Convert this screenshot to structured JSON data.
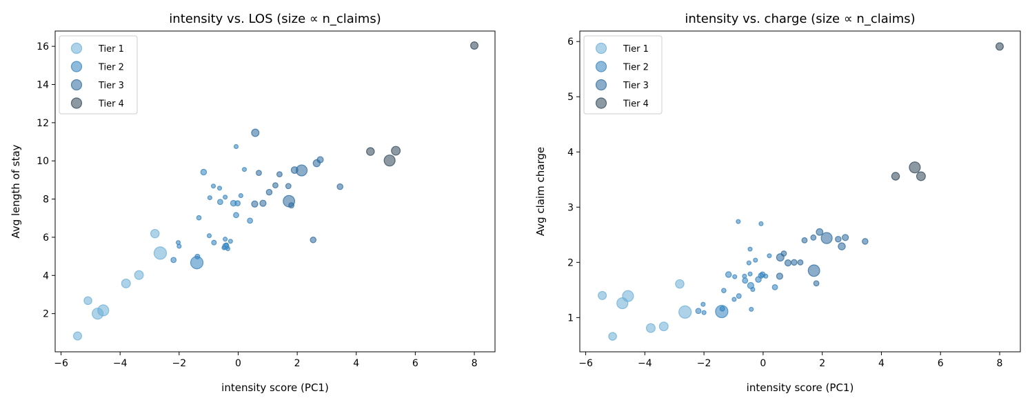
{
  "colors": {
    "Tier 1": "#6baed6",
    "Tier 2": "#3182bd",
    "Tier 3": "#2b6a9c",
    "Tier 4": "#2f4656"
  },
  "chart_data": [
    {
      "type": "scatter",
      "title": "intensity vs. LOS (size ∝ n_claims)",
      "xlabel": "intensity score (PC1)",
      "ylabel": "Avg length of stay",
      "xlim": [
        -6.2,
        8.7
      ],
      "ylim": [
        0.0,
        16.8
      ],
      "xticks": [
        -6,
        -4,
        -2,
        0,
        2,
        4,
        6,
        8
      ],
      "yticks": [
        2,
        4,
        6,
        8,
        10,
        12,
        14,
        16
      ],
      "grid": false,
      "legend": "top-left",
      "legend_entries": [
        "Tier 1",
        "Tier 2",
        "Tier 3",
        "Tier 4"
      ],
      "y_field": "los"
    },
    {
      "type": "scatter",
      "title": "intensity vs. charge (size ∝ n_claims)",
      "xlabel": "intensity score (PC1)",
      "ylabel": "Avg claim charge",
      "xlim": [
        -6.2,
        8.7
      ],
      "ylim": [
        0.38,
        6.19
      ],
      "xticks": [
        -6,
        -4,
        -2,
        0,
        2,
        4,
        6,
        8
      ],
      "yticks": [
        1,
        2,
        3,
        4,
        5,
        6
      ],
      "grid": false,
      "legend": "top-left",
      "legend_entries": [
        "Tier 1",
        "Tier 2",
        "Tier 3",
        "Tier 4"
      ],
      "y_field": "charge"
    }
  ],
  "points": [
    {
      "x": -5.44,
      "los": 0.83,
      "charge": 1.4,
      "n": 60,
      "tier": "Tier 1"
    },
    {
      "x": -5.09,
      "los": 2.68,
      "charge": 0.66,
      "n": 55,
      "tier": "Tier 1"
    },
    {
      "x": -4.76,
      "los": 2.0,
      "charge": 1.26,
      "n": 110,
      "tier": "Tier 1"
    },
    {
      "x": -4.57,
      "los": 2.17,
      "charge": 1.39,
      "n": 110,
      "tier": "Tier 1"
    },
    {
      "x": -3.8,
      "los": 3.58,
      "charge": 0.81,
      "n": 70,
      "tier": "Tier 1"
    },
    {
      "x": -3.36,
      "los": 4.02,
      "charge": 0.84,
      "n": 70,
      "tier": "Tier 1"
    },
    {
      "x": -2.82,
      "los": 6.19,
      "charge": 1.61,
      "n": 65,
      "tier": "Tier 1"
    },
    {
      "x": -2.64,
      "los": 5.17,
      "charge": 1.1,
      "n": 140,
      "tier": "Tier 1"
    },
    {
      "x": -2.19,
      "los": 4.81,
      "charge": 1.12,
      "n": 25,
      "tier": "Tier 2"
    },
    {
      "x": -2.03,
      "los": 5.72,
      "charge": 1.24,
      "n": 15,
      "tier": "Tier 2"
    },
    {
      "x": -2.0,
      "los": 5.53,
      "charge": 1.09,
      "n": 15,
      "tier": "Tier 2"
    },
    {
      "x": -1.4,
      "los": 4.67,
      "charge": 1.11,
      "n": 140,
      "tier": "Tier 2"
    },
    {
      "x": -1.38,
      "los": 4.99,
      "charge": 1.16,
      "n": 20,
      "tier": "Tier 2"
    },
    {
      "x": -1.33,
      "los": 7.02,
      "charge": 1.49,
      "n": 18,
      "tier": "Tier 2"
    },
    {
      "x": -1.17,
      "los": 9.41,
      "charge": 1.78,
      "n": 30,
      "tier": "Tier 2"
    },
    {
      "x": -0.98,
      "los": 6.08,
      "charge": 1.33,
      "n": 15,
      "tier": "Tier 2"
    },
    {
      "x": -0.96,
      "los": 8.07,
      "charge": 1.74,
      "n": 15,
      "tier": "Tier 2"
    },
    {
      "x": -0.84,
      "los": 8.68,
      "charge": 2.74,
      "n": 15,
      "tier": "Tier 2"
    },
    {
      "x": -0.82,
      "los": 5.72,
      "charge": 1.39,
      "n": 20,
      "tier": "Tier 2"
    },
    {
      "x": -0.63,
      "los": 8.57,
      "charge": 1.75,
      "n": 15,
      "tier": "Tier 2"
    },
    {
      "x": -0.61,
      "los": 7.85,
      "charge": 1.67,
      "n": 25,
      "tier": "Tier 2"
    },
    {
      "x": -0.44,
      "los": 8.1,
      "charge": 1.79,
      "n": 15,
      "tier": "Tier 2"
    },
    {
      "x": -0.44,
      "los": 5.9,
      "charge": 2.24,
      "n": 15,
      "tier": "Tier 2"
    },
    {
      "x": -0.42,
      "los": 5.53,
      "charge": 1.58,
      "n": 35,
      "tier": "Tier 2"
    },
    {
      "x": -0.48,
      "los": 5.45,
      "charge": 1.99,
      "n": 15,
      "tier": "Tier 2"
    },
    {
      "x": -0.35,
      "los": 5.4,
      "charge": 1.51,
      "n": 15,
      "tier": "Tier 2"
    },
    {
      "x": -0.4,
      "los": 5.6,
      "charge": 1.15,
      "n": 15,
      "tier": "Tier 2"
    },
    {
      "x": -0.26,
      "los": 5.79,
      "charge": 2.04,
      "n": 15,
      "tier": "Tier 2"
    },
    {
      "x": -0.16,
      "los": 7.78,
      "charge": 1.69,
      "n": 30,
      "tier": "Tier 2"
    },
    {
      "x": -0.02,
      "los": 7.78,
      "charge": 1.78,
      "n": 25,
      "tier": "Tier 2"
    },
    {
      "x": -0.07,
      "los": 7.16,
      "charge": 1.76,
      "n": 25,
      "tier": "Tier 2"
    },
    {
      "x": -0.07,
      "los": 10.75,
      "charge": 2.7,
      "n": 15,
      "tier": "Tier 2"
    },
    {
      "x": 0.09,
      "los": 8.18,
      "charge": 1.75,
      "n": 15,
      "tier": "Tier 2"
    },
    {
      "x": 0.21,
      "los": 9.55,
      "charge": 2.12,
      "n": 15,
      "tier": "Tier 2"
    },
    {
      "x": 0.4,
      "los": 6.87,
      "charge": 1.55,
      "n": 25,
      "tier": "Tier 2"
    },
    {
      "x": 0.58,
      "los": 11.47,
      "charge": 2.09,
      "n": 50,
      "tier": "Tier 3"
    },
    {
      "x": 0.7,
      "los": 9.37,
      "charge": 2.16,
      "n": 25,
      "tier": "Tier 3"
    },
    {
      "x": 0.56,
      "los": 7.74,
      "charge": 1.75,
      "n": 35,
      "tier": "Tier 3"
    },
    {
      "x": 0.84,
      "los": 7.78,
      "charge": 1.99,
      "n": 35,
      "tier": "Tier 3"
    },
    {
      "x": 1.05,
      "los": 8.36,
      "charge": 2.0,
      "n": 30,
      "tier": "Tier 3"
    },
    {
      "x": 1.26,
      "los": 8.72,
      "charge": 2.0,
      "n": 25,
      "tier": "Tier 3"
    },
    {
      "x": 1.4,
      "los": 9.3,
      "charge": 2.4,
      "n": 25,
      "tier": "Tier 3"
    },
    {
      "x": 1.7,
      "los": 8.68,
      "charge": 2.45,
      "n": 25,
      "tier": "Tier 3"
    },
    {
      "x": 1.72,
      "los": 7.89,
      "charge": 1.85,
      "n": 120,
      "tier": "Tier 3"
    },
    {
      "x": 1.8,
      "los": 7.67,
      "charge": 1.62,
      "n": 25,
      "tier": "Tier 3"
    },
    {
      "x": 1.91,
      "los": 9.52,
      "charge": 2.55,
      "n": 40,
      "tier": "Tier 3"
    },
    {
      "x": 2.15,
      "los": 9.5,
      "charge": 2.44,
      "n": 110,
      "tier": "Tier 3"
    },
    {
      "x": 2.54,
      "los": 5.86,
      "charge": 2.42,
      "n": 30,
      "tier": "Tier 3"
    },
    {
      "x": 2.66,
      "los": 9.88,
      "charge": 2.29,
      "n": 45,
      "tier": "Tier 3"
    },
    {
      "x": 2.78,
      "los": 10.06,
      "charge": 2.45,
      "n": 35,
      "tier": "Tier 3"
    },
    {
      "x": 3.45,
      "los": 8.65,
      "charge": 2.38,
      "n": 30,
      "tier": "Tier 3"
    },
    {
      "x": 4.48,
      "los": 10.49,
      "charge": 3.56,
      "n": 55,
      "tier": "Tier 4"
    },
    {
      "x": 5.13,
      "los": 10.02,
      "charge": 3.72,
      "n": 110,
      "tier": "Tier 4"
    },
    {
      "x": 5.34,
      "los": 10.53,
      "charge": 3.56,
      "n": 70,
      "tier": "Tier 4"
    },
    {
      "x": 8.0,
      "los": 16.04,
      "charge": 5.91,
      "n": 50,
      "tier": "Tier 4"
    }
  ]
}
